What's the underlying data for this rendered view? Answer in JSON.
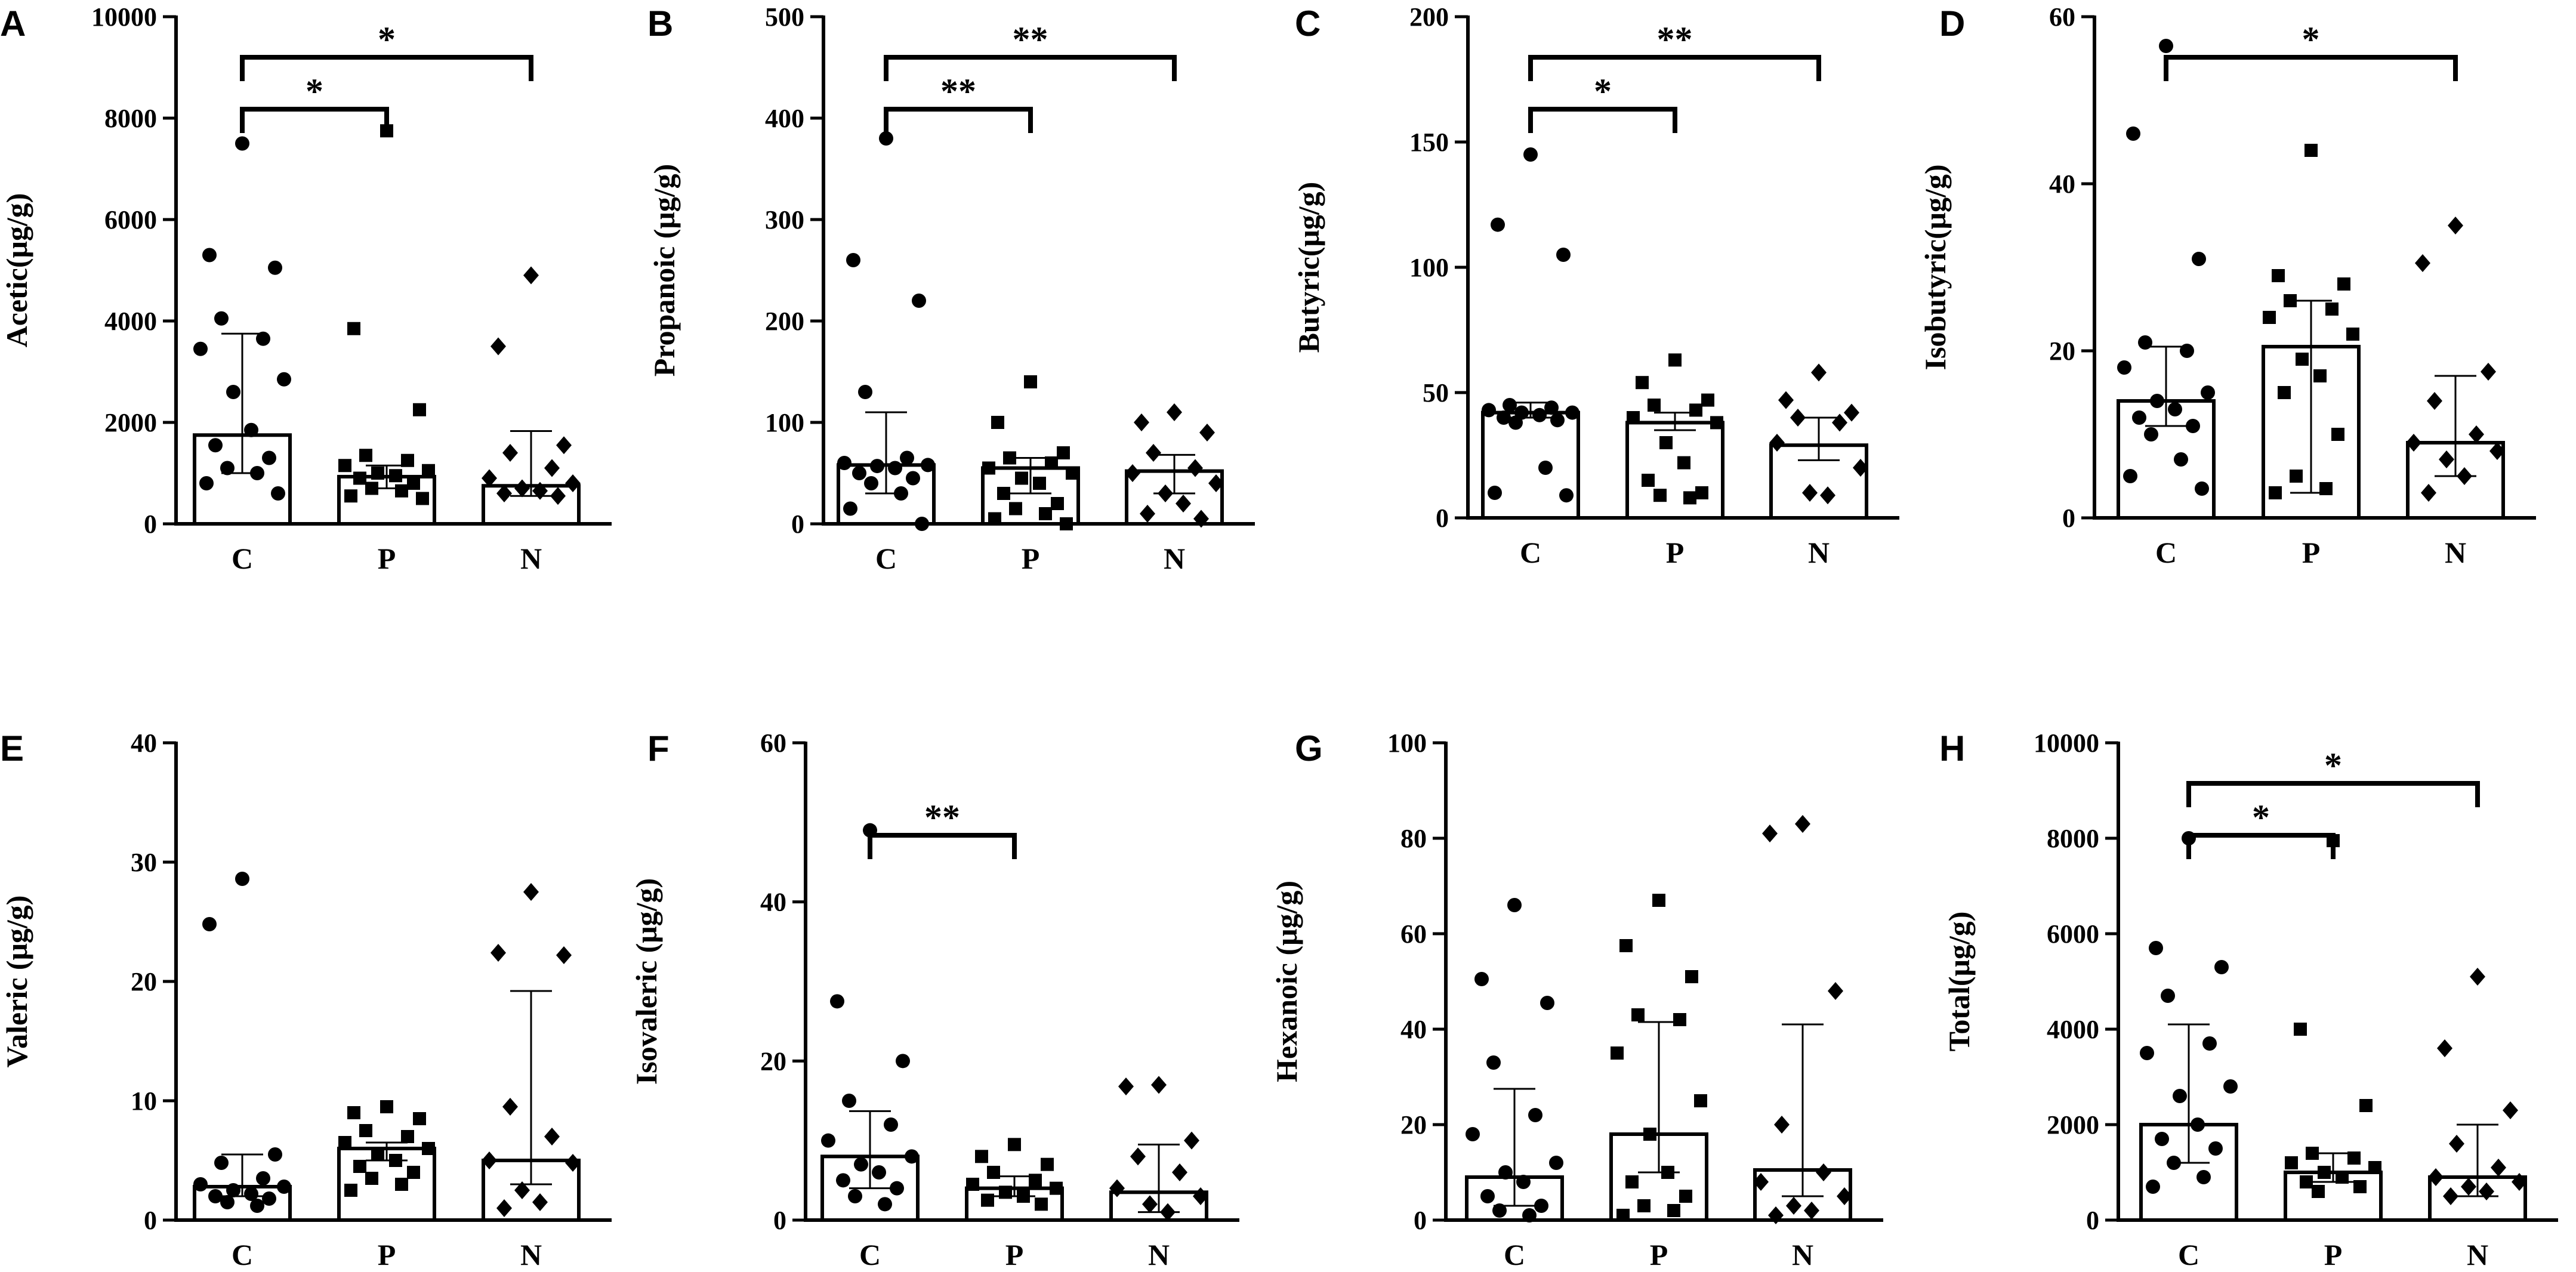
{
  "figure": {
    "categories": [
      "C",
      "P",
      "N"
    ],
    "colors": {
      "ink": "#000000",
      "bar_fill": "#ffffff"
    },
    "marker_shapes": [
      "circle",
      "square",
      "diamond"
    ]
  },
  "chart_data": [
    {
      "panel": "A",
      "type": "bar",
      "ylabel": "Acetic(μg/g)",
      "categories": [
        "C",
        "P",
        "N"
      ],
      "ylim": [
        0,
        10000
      ],
      "yticks": [
        0,
        2000,
        4000,
        6000,
        8000,
        10000
      ],
      "ytick_labels": [
        "0",
        "2000",
        "4000",
        "6000",
        "8000",
        "10000"
      ],
      "bars": [
        1750,
        930,
        750
      ],
      "error": [
        [
          1000,
          3750
        ],
        [
          700,
          1150
        ],
        [
          550,
          1830
        ]
      ],
      "points": [
        [
          7500,
          5300,
          5050,
          4050,
          3650,
          3450,
          2850,
          2600,
          1850,
          1550,
          1300,
          1100,
          1000,
          800,
          600
        ],
        [
          7750,
          3850,
          2250,
          1350,
          1250,
          1150,
          1050,
          1000,
          950,
          900,
          800,
          700,
          650,
          550,
          500
        ],
        [
          4900,
          3500,
          1550,
          1400,
          1100,
          900,
          800,
          700,
          650,
          600,
          550
        ]
      ],
      "significance": [
        {
          "from": "C",
          "to": "P",
          "label": "*"
        },
        {
          "from": "C",
          "to": "N",
          "label": "*"
        }
      ]
    },
    {
      "panel": "B",
      "type": "bar",
      "ylabel": "Propanoic (μg/g)",
      "categories": [
        "C",
        "P",
        "N"
      ],
      "ylim": [
        0,
        500
      ],
      "yticks": [
        0,
        100,
        200,
        300,
        400,
        500
      ],
      "ytick_labels": [
        "0",
        "100",
        "200",
        "300",
        "400",
        "500"
      ],
      "bars": [
        58,
        55,
        52
      ],
      "error": [
        [
          30,
          110
        ],
        [
          30,
          65
        ],
        [
          30,
          68
        ]
      ],
      "points": [
        [
          380,
          260,
          220,
          130,
          65,
          60,
          58,
          57,
          55,
          50,
          45,
          40,
          30,
          15,
          0
        ],
        [
          140,
          100,
          70,
          65,
          60,
          55,
          50,
          45,
          40,
          30,
          20,
          15,
          10,
          5,
          0
        ],
        [
          110,
          100,
          90,
          70,
          55,
          50,
          40,
          30,
          20,
          10,
          5
        ]
      ],
      "significance": [
        {
          "from": "C",
          "to": "P",
          "label": "**"
        },
        {
          "from": "C",
          "to": "N",
          "label": "**"
        }
      ]
    },
    {
      "panel": "C",
      "type": "bar",
      "ylabel": "Butyric(μg/g)",
      "categories": [
        "C",
        "P",
        "N"
      ],
      "ylim": [
        0,
        200
      ],
      "yticks": [
        0,
        50,
        100,
        150,
        200
      ],
      "ytick_labels": [
        "0",
        "50",
        "100",
        "150",
        "200"
      ],
      "bars": [
        42,
        38,
        29
      ],
      "error": [
        [
          40,
          46
        ],
        [
          35,
          42
        ],
        [
          23,
          40
        ]
      ],
      "points": [
        [
          145,
          117,
          105,
          45,
          44,
          43,
          42,
          42,
          41,
          40,
          39,
          38,
          20,
          10,
          9
        ],
        [
          63,
          54,
          47,
          45,
          43,
          40,
          38,
          30,
          22,
          15,
          10,
          9,
          8
        ],
        [
          58,
          47,
          42,
          40,
          38,
          30,
          20,
          10,
          9
        ]
      ],
      "significance": [
        {
          "from": "C",
          "to": "P",
          "label": "*"
        },
        {
          "from": "C",
          "to": "N",
          "label": "**"
        }
      ]
    },
    {
      "panel": "D",
      "type": "bar",
      "ylabel": "Isobutyric(μg/g)",
      "categories": [
        "C",
        "P",
        "N"
      ],
      "ylim": [
        0,
        60
      ],
      "yticks": [
        0,
        20,
        40,
        60
      ],
      "ytick_labels": [
        "0",
        "20",
        "40",
        "60"
      ],
      "bars": [
        14,
        20.5,
        9
      ],
      "error": [
        [
          11,
          20.5
        ],
        [
          3,
          26
        ],
        [
          5,
          17
        ]
      ],
      "points": [
        [
          56.5,
          46,
          31,
          21,
          20,
          18,
          15,
          14,
          13,
          12,
          11,
          10,
          7,
          5,
          3.5
        ],
        [
          44,
          29,
          28,
          26,
          25,
          24,
          22,
          19,
          17,
          15,
          10,
          5,
          3.5,
          3
        ],
        [
          35,
          30.5,
          17.5,
          14,
          10,
          9,
          8,
          7,
          5,
          3
        ]
      ],
      "significance": [
        {
          "from": "C",
          "to": "N",
          "label": "*"
        }
      ]
    },
    {
      "panel": "E",
      "type": "bar",
      "ylabel": "Valeric (μg/g)",
      "categories": [
        "C",
        "P",
        "N"
      ],
      "ylim": [
        0,
        40
      ],
      "yticks": [
        0,
        10,
        20,
        30,
        40
      ],
      "ytick_labels": [
        "0",
        "10",
        "20",
        "30",
        "40"
      ],
      "bars": [
        2.8,
        6,
        5
      ],
      "error": [
        [
          2,
          5.5
        ],
        [
          5,
          6.5
        ],
        [
          3,
          19.2
        ]
      ],
      "points": [
        [
          28.6,
          24.8,
          5.5,
          4.8,
          3.5,
          3,
          2.8,
          2.5,
          2.2,
          2,
          1.8,
          1.5,
          1.2
        ],
        [
          9.5,
          9,
          8.5,
          7.5,
          7,
          6.5,
          6,
          5.5,
          5,
          4.5,
          4,
          3.5,
          3,
          2.5
        ],
        [
          27.5,
          22.4,
          22.2,
          9.5,
          7,
          5,
          4.8,
          2.5,
          1.5,
          1
        ]
      ],
      "significance": []
    },
    {
      "panel": "F",
      "type": "bar",
      "ylabel": "Isovaleric (μg/g)",
      "categories": [
        "C",
        "P",
        "N"
      ],
      "ylim": [
        0,
        60
      ],
      "yticks": [
        0,
        20,
        40,
        60
      ],
      "ytick_labels": [
        "0",
        "20",
        "40",
        "60"
      ],
      "bars": [
        8,
        4,
        3.5
      ],
      "error": [
        [
          4,
          13.7
        ],
        [
          3,
          5.5
        ],
        [
          1,
          9.5
        ]
      ],
      "points": [
        [
          49,
          27.5,
          20,
          15,
          12,
          10,
          8,
          7,
          6,
          5,
          4,
          3,
          2
        ],
        [
          9.5,
          8,
          7,
          6,
          5,
          4.5,
          4,
          3.5,
          3,
          2.5,
          2
        ],
        [
          17,
          16.8,
          10,
          8,
          6,
          4,
          3,
          2,
          1
        ]
      ],
      "significance": [
        {
          "from": "C",
          "to": "P",
          "label": "**"
        }
      ]
    },
    {
      "panel": "G",
      "type": "bar",
      "ylabel": "Hexanoic (μg/g)",
      "categories": [
        "C",
        "P",
        "N"
      ],
      "ylim": [
        0,
        100
      ],
      "yticks": [
        0,
        20,
        40,
        60,
        80,
        100
      ],
      "ytick_labels": [
        "0",
        "20",
        "40",
        "60",
        "80",
        "100"
      ],
      "bars": [
        9,
        18,
        10.5
      ],
      "error": [
        [
          3,
          27.5
        ],
        [
          10,
          41.5
        ],
        [
          5,
          41
        ]
      ],
      "points": [
        [
          66,
          50.5,
          45.5,
          33,
          22,
          18,
          12,
          10,
          8,
          5,
          3,
          2,
          1
        ],
        [
          67,
          57.5,
          51,
          43,
          42,
          35,
          25,
          18,
          10,
          8,
          5,
          3,
          2,
          1
        ],
        [
          83,
          81,
          48,
          20,
          10,
          8,
          5,
          3,
          2,
          1
        ]
      ],
      "significance": []
    },
    {
      "panel": "H",
      "type": "bar",
      "ylabel": "Total(μg/g)",
      "categories": [
        "C",
        "P",
        "N"
      ],
      "ylim": [
        0,
        10000
      ],
      "yticks": [
        0,
        2000,
        4000,
        6000,
        8000,
        10000
      ],
      "ytick_labels": [
        "0",
        "2000",
        "4000",
        "6000",
        "8000",
        "10000"
      ],
      "bars": [
        2000,
        1000,
        900
      ],
      "error": [
        [
          1200,
          4100
        ],
        [
          800,
          1400
        ],
        [
          500,
          2000
        ]
      ],
      "points": [
        [
          8000,
          5700,
          5300,
          4700,
          3700,
          3500,
          2800,
          2600,
          2000,
          1700,
          1500,
          1200,
          900,
          700
        ],
        [
          7950,
          4000,
          2400,
          1400,
          1300,
          1200,
          1100,
          1000,
          900,
          800,
          700,
          600
        ],
        [
          5100,
          3600,
          2300,
          1600,
          1100,
          900,
          800,
          700,
          600,
          500
        ]
      ],
      "significance": [
        {
          "from": "C",
          "to": "P",
          "label": "*"
        },
        {
          "from": "C",
          "to": "N",
          "label": "*"
        }
      ]
    }
  ]
}
